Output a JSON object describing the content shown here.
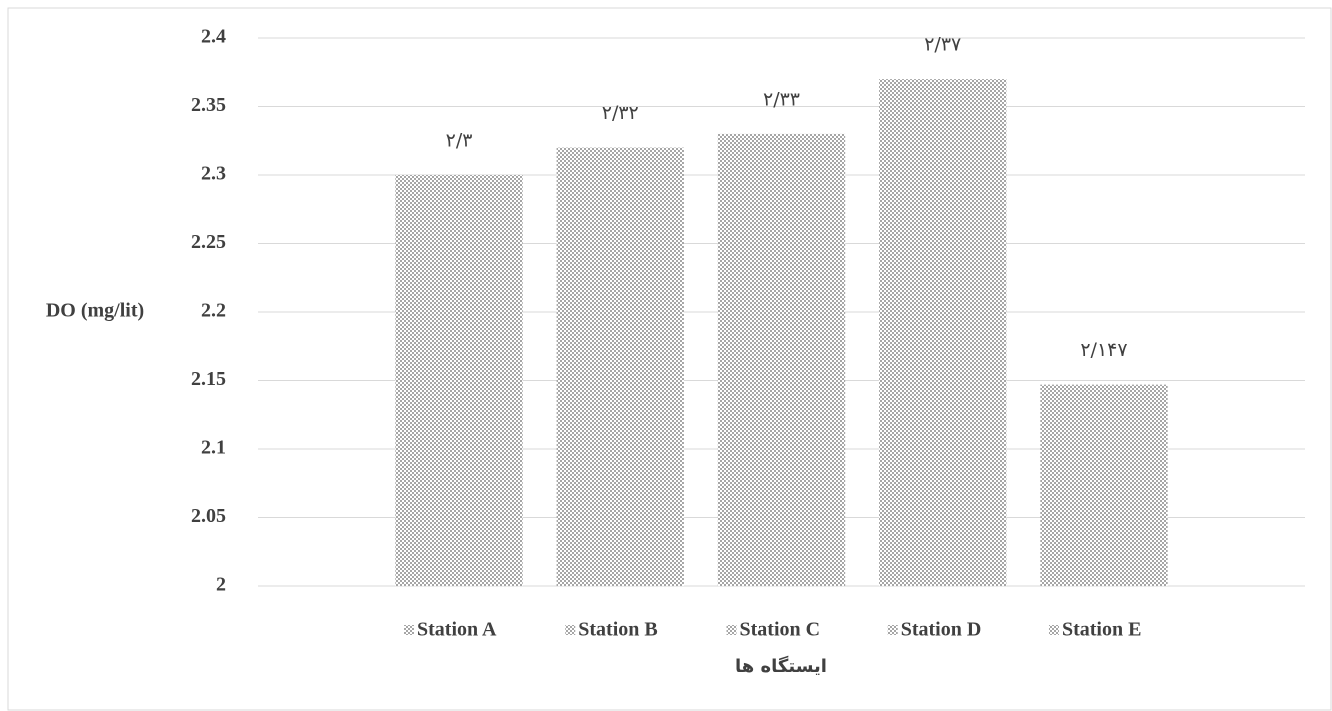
{
  "chart_data": {
    "type": "bar",
    "y_axis_label": "DO (mg/lit)",
    "x_axis_label": "ایستگاه ها",
    "categories": [
      null
    ],
    "series": [
      {
        "name": "Station A",
        "color": "#a6a6a6",
        "values": [
          2.3
        ],
        "value_labels": [
          "۲/۳"
        ]
      },
      {
        "name": "Station B",
        "color": "#a6a6a6",
        "values": [
          2.32
        ],
        "value_labels": [
          "۲/۳۲"
        ]
      },
      {
        "name": "Station C",
        "color": "#a6a6a6",
        "values": [
          2.33
        ],
        "value_labels": [
          "۲/۳۳"
        ]
      },
      {
        "name": "Station D",
        "color": "#a6a6a6",
        "values": [
          2.37
        ],
        "value_labels": [
          "۲/۳۷"
        ]
      },
      {
        "name": "Station E",
        "color": "#a6a6a6",
        "values": [
          2.147
        ],
        "value_labels": [
          "۲/۱۴۷"
        ]
      }
    ],
    "ylim": [
      2,
      2.4
    ],
    "yticks": [
      2,
      2.05,
      2.1,
      2.15,
      2.2,
      2.25,
      2.3,
      2.35,
      2.4
    ],
    "grid": true,
    "legend": "bottom"
  }
}
